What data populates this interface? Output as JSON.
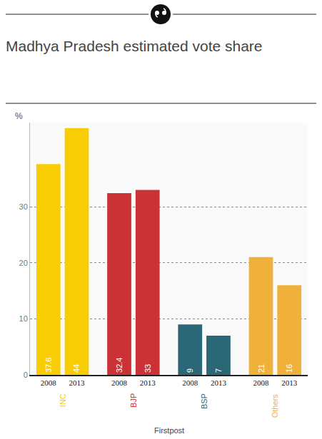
{
  "chart_data": {
    "type": "bar",
    "title": "Madhya Pradesh estimated vote share",
    "ylabel": "%",
    "source": "Firstpost",
    "categories": [
      "2008",
      "2013"
    ],
    "series": [
      {
        "name": "INC",
        "color": "#f9cd06",
        "values": [
          37.6,
          44
        ]
      },
      {
        "name": "BJP",
        "color": "#cb3236",
        "values": [
          32.4,
          33
        ]
      },
      {
        "name": "BSP",
        "color": "#2b6777",
        "values": [
          9,
          7
        ]
      },
      {
        "name": "Others",
        "color": "#f0b13a",
        "values": [
          21,
          16
        ]
      }
    ],
    "ylim": [
      0,
      45
    ],
    "yticks": [
      0,
      10,
      20,
      30
    ],
    "grid": true,
    "data_labels": true
  }
}
